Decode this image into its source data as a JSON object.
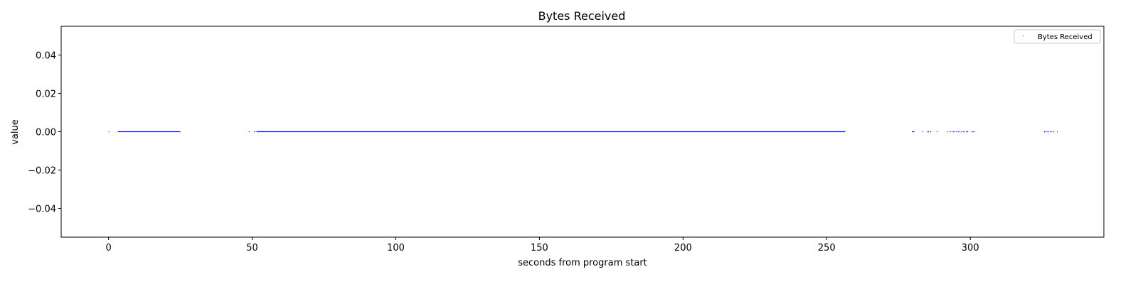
{
  "chart_data": {
    "type": "scatter",
    "title": "Bytes Received",
    "xlabel": "seconds from program start",
    "ylabel": "value",
    "xlim": [
      -16.5,
      346.5
    ],
    "ylim": [
      -0.055,
      0.055
    ],
    "xticks": [
      0,
      50,
      100,
      150,
      200,
      250,
      300
    ],
    "xtick_labels": [
      "0",
      "50",
      "100",
      "150",
      "200",
      "250",
      "300"
    ],
    "yticks": [
      -0.04,
      -0.02,
      0.0,
      0.02,
      0.04
    ],
    "ytick_labels": [
      "−0.04",
      "−0.02",
      "0.00",
      "0.02",
      "0.04"
    ],
    "grid": false,
    "legend_position": "top-right",
    "series": [
      {
        "name": "Bytes Received",
        "color": "#0000ff",
        "marker": "point",
        "y_value": 0,
        "x_segments": [
          [
            0,
            0.2
          ],
          [
            3.2,
            25.0
          ],
          [
            48.8,
            49.0
          ],
          [
            50.6,
            51.0
          ],
          [
            51.5,
            256.5
          ]
        ],
        "x_points": [
          279.8,
          280.1,
          280.4,
          283.3,
          285.0,
          285.5,
          286.2,
          288.4,
          292.2,
          293.0,
          293.6,
          294.1,
          294.6,
          295.2,
          295.8,
          296.4,
          296.9,
          297.5,
          298.0,
          298.6,
          299.1,
          300.5,
          301.0,
          301.4,
          325.8,
          326.2,
          326.7,
          327.2,
          327.8,
          328.4,
          329.1,
          330.3
        ]
      }
    ]
  }
}
